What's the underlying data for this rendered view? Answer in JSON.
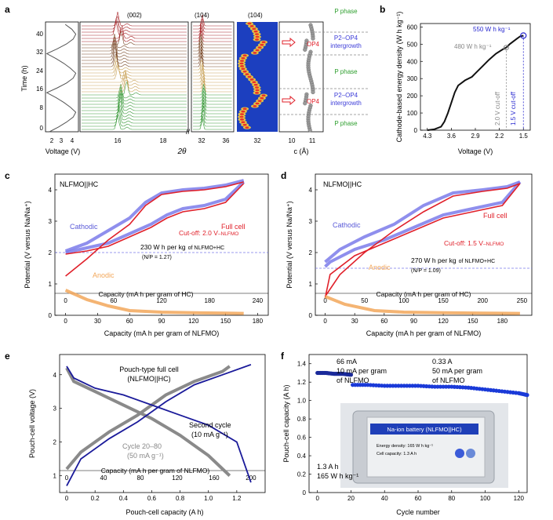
{
  "figure": {
    "colors": {
      "cathodic": "#7b7bea",
      "full_cell": "#e0202a",
      "anodic": "#f2a75a",
      "cutoff_line": "#7b7bea",
      "energy_line": "#111111",
      "marker_blue": "#2a2ad0",
      "phase_green": "#2c9e2c",
      "phase_blue": "#3b3bd8",
      "op4_red": "#e0202a",
      "pouch_blue": "#1a1a9a",
      "pouch_gray": "#8a8a8a",
      "cycle_blue": "#1a3ad8"
    }
  },
  "chart_data": [
    {
      "panel": "a",
      "type": "line",
      "panel_label": "a",
      "ylabel": "Time (h)",
      "yticks": [
        "0",
        "8",
        "16",
        "24",
        "32",
        "40"
      ],
      "ylim": [
        0,
        45
      ],
      "voltage_xlabel": "Voltage (V)",
      "voltage_xticks": [
        "2",
        "3",
        "4"
      ],
      "two_theta_label": "2θ",
      "two_theta_ticks": [
        "16",
        "18",
        "32",
        "36"
      ],
      "c_axis_label": "c (Å)",
      "c_axis_ticks": [
        "10",
        "11"
      ],
      "peak_labels": [
        "(002)",
        "(104)",
        "(104)"
      ],
      "heatmap_tick": "32",
      "op4_label": "OP4",
      "phases": [
        "P phase",
        "P2–OP4",
        "intergrowth",
        "P phase",
        "P2–OP4",
        "intergrowth",
        "P phase"
      ],
      "voltage_profile": {
        "time_h": [
          0,
          2,
          4,
          6,
          8,
          10,
          12,
          14,
          16,
          18,
          20,
          22,
          24,
          26,
          28,
          30,
          32,
          34,
          36,
          38,
          40,
          42,
          44
        ],
        "voltage_v": [
          2.3,
          3.0,
          3.6,
          4.1,
          4.3,
          3.9,
          3.4,
          2.8,
          2.1,
          2.9,
          3.6,
          4.1,
          4.3,
          3.9,
          3.4,
          2.8,
          2.1,
          2.9,
          3.6,
          4.1,
          4.3,
          4.0,
          3.5
        ]
      }
    },
    {
      "panel": "b",
      "type": "line",
      "panel_label": "b",
      "xlabel": "Voltage (V)",
      "ylabel": "Cathode-based energy density (W h kg⁻¹)",
      "xticks": [
        "4.3",
        "3.6",
        "2.9",
        "2.2",
        "1.5"
      ],
      "yticks": [
        "0",
        "100",
        "200",
        "300",
        "400",
        "500",
        "600"
      ],
      "xlim": [
        4.5,
        1.3
      ],
      "ylim": [
        0,
        620
      ],
      "x": [
        4.3,
        4.1,
        3.9,
        3.8,
        3.7,
        3.6,
        3.5,
        3.4,
        3.2,
        3.0,
        2.9,
        2.7,
        2.5,
        2.3,
        2.1,
        2.0,
        1.9,
        1.7,
        1.6,
        1.5
      ],
      "y": [
        0,
        5,
        20,
        50,
        100,
        160,
        220,
        260,
        290,
        310,
        330,
        370,
        410,
        445,
        470,
        480,
        500,
        530,
        545,
        550
      ],
      "annotations": [
        "550 W h kg⁻¹",
        "480 W h kg⁻¹",
        "2.0 V cut-off",
        "1.5 V cut-off"
      ]
    },
    {
      "panel": "c",
      "type": "line",
      "panel_label": "c",
      "title": "NLFMO||HC",
      "xlabel": "Capacity (mA h per gram of NLFMO)",
      "top_xlabel": "Capacity (mA h per gram of HC)",
      "ylabel": "Potential (V versus Na/Na⁺)",
      "xticks": [
        "0",
        "30",
        "60",
        "90",
        "120",
        "150",
        "180"
      ],
      "top_xticks": [
        "0",
        "60",
        "120",
        "180",
        "240"
      ],
      "yticks": [
        "0",
        "1",
        "2",
        "3",
        "4"
      ],
      "xlim": [
        -10,
        190
      ],
      "ylim": [
        0,
        4.5
      ],
      "labels": {
        "cathodic": "Cathodic",
        "full_cell": "Full cell",
        "anodic": "Anodic",
        "cutoff": "Cut-off: 2.0 V",
        "cutoff_sub": "–NLFMO",
        "energy": "230 W h per kg",
        "energy_sub": "of NLFMO+HC",
        "np": "(N/P = 1.27)"
      },
      "cutoff_v": 2.0,
      "series": [
        {
          "name": "Cathodic",
          "charge_x": [
            0,
            20,
            40,
            60,
            75,
            90,
            110,
            130,
            150,
            167
          ],
          "charge_y": [
            2.05,
            2.3,
            2.7,
            3.1,
            3.6,
            3.9,
            4.0,
            4.05,
            4.15,
            4.3
          ],
          "discharge_x": [
            167,
            150,
            130,
            110,
            95,
            80,
            60,
            40,
            20,
            0
          ],
          "discharge_y": [
            4.25,
            3.7,
            3.5,
            3.4,
            3.2,
            2.9,
            2.6,
            2.3,
            2.15,
            2.0
          ]
        },
        {
          "name": "Full cell",
          "charge_x": [
            0,
            20,
            40,
            60,
            75,
            90,
            110,
            130,
            150,
            167
          ],
          "charge_y": [
            1.25,
            1.8,
            2.4,
            2.9,
            3.5,
            3.85,
            3.95,
            4.0,
            4.1,
            4.25
          ],
          "discharge_x": [
            167,
            150,
            130,
            110,
            95,
            80,
            60,
            40,
            20,
            0
          ],
          "discharge_y": [
            4.2,
            3.6,
            3.4,
            3.3,
            3.1,
            2.8,
            2.5,
            2.2,
            2.05,
            1.95
          ]
        },
        {
          "name": "Anodic",
          "x": [
            0,
            20,
            40,
            60,
            90,
            120,
            150,
            167
          ],
          "y": [
            0.8,
            0.5,
            0.3,
            0.15,
            0.1,
            0.08,
            0.07,
            0.06
          ]
        }
      ]
    },
    {
      "panel": "d",
      "type": "line",
      "panel_label": "d",
      "title": "NLFMO||HC",
      "xlabel": "Capacity (mA h per gram of NLFMO)",
      "top_xlabel": "Capacity (mA h per gram of HC)",
      "ylabel": "Potential (V versus Na/Na⁺)",
      "xticks": [
        "0",
        "30",
        "60",
        "90",
        "120",
        "150",
        "180"
      ],
      "top_xticks": [
        "0",
        "50",
        "100",
        "150",
        "200",
        "250"
      ],
      "yticks": [
        "0",
        "1",
        "2",
        "3",
        "4"
      ],
      "xlim": [
        -10,
        210
      ],
      "ylim": [
        0,
        4.5
      ],
      "labels": {
        "cathodic": "Cathodic",
        "full_cell": "Full cell",
        "anodic": "Anodic",
        "cutoff": "Cut-off: 1.5 V",
        "cutoff_sub": "–NLFMO",
        "energy": "270 W h per kg",
        "energy_sub": "of NLFMO+HC",
        "np": "(N/P = 1.09)"
      },
      "cutoff_v": 1.5,
      "series": [
        {
          "name": "Cathodic",
          "charge_x": [
            0,
            15,
            40,
            70,
            100,
            130,
            160,
            185,
            198
          ],
          "charge_y": [
            1.7,
            2.1,
            2.5,
            2.9,
            3.5,
            3.9,
            4.0,
            4.1,
            4.25
          ],
          "discharge_x": [
            198,
            180,
            150,
            120,
            90,
            60,
            30,
            5,
            0
          ],
          "discharge_y": [
            4.25,
            3.6,
            3.4,
            3.2,
            2.8,
            2.4,
            2.1,
            1.7,
            1.55
          ]
        },
        {
          "name": "Full cell",
          "charge_x": [
            0,
            15,
            40,
            70,
            100,
            130,
            160,
            185,
            198
          ],
          "charge_y": [
            0.6,
            1.3,
            2.0,
            2.7,
            3.3,
            3.8,
            3.95,
            4.05,
            4.2
          ],
          "discharge_x": [
            198,
            180,
            150,
            120,
            90,
            60,
            30,
            5,
            0
          ],
          "discharge_y": [
            4.2,
            3.5,
            3.3,
            3.1,
            2.7,
            2.3,
            1.9,
            1.3,
            0.55
          ]
        },
        {
          "name": "Anodic",
          "x": [
            0,
            20,
            50,
            80,
            120,
            160,
            198
          ],
          "y": [
            0.6,
            0.35,
            0.15,
            0.1,
            0.08,
            0.07,
            0.06
          ]
        }
      ]
    },
    {
      "panel": "e",
      "type": "line",
      "panel_label": "e",
      "xlabel": "Pouch-cell capacity (A h)",
      "top_xlabel": "Capacity (mA h per gram of NLFMO)",
      "ylabel": "Pouch-cell voltage (V)",
      "xticks": [
        "0",
        "0.2",
        "0.4",
        "0.6",
        "0.8",
        "1.0",
        "1.2"
      ],
      "top_xticks": [
        "0",
        "40",
        "80",
        "120",
        "160",
        "200"
      ],
      "yticks": [
        "1",
        "2",
        "3",
        "4"
      ],
      "xlim": [
        -0.05,
        1.4
      ],
      "ylim": [
        0.5,
        4.6
      ],
      "labels": {
        "pouch": "Pouch-type full cell",
        "pouch_sub": "(NLFMO||HC)",
        "second": "Second cycle",
        "second_sub": "(10 mA g⁻¹)",
        "cycle": "Cycle 20–80",
        "cycle_sub": "(50 mA g⁻¹)"
      },
      "series": [
        {
          "name": "Second cycle",
          "charge_x": [
            0,
            0.1,
            0.3,
            0.5,
            0.7,
            0.9,
            1.1,
            1.3
          ],
          "charge_y": [
            0.7,
            1.5,
            2.1,
            2.6,
            3.2,
            3.7,
            4.0,
            4.3
          ],
          "discharge_x": [
            0,
            0.05,
            0.2,
            0.4,
            0.6,
            0.8,
            1.0,
            1.2,
            1.3
          ],
          "discharge_y": [
            4.25,
            3.9,
            3.6,
            3.4,
            3.1,
            2.8,
            2.5,
            2.0,
            0.8
          ]
        },
        {
          "name": "Cycle 20–80",
          "charge_x": [
            0,
            0.1,
            0.3,
            0.5,
            0.7,
            0.9,
            1.1,
            1.15
          ],
          "charge_y": [
            1.2,
            1.7,
            2.3,
            2.8,
            3.4,
            3.8,
            4.1,
            4.25
          ],
          "discharge_x": [
            0,
            0.05,
            0.2,
            0.4,
            0.6,
            0.8,
            1.0,
            1.15
          ],
          "discharge_y": [
            4.2,
            3.8,
            3.5,
            3.1,
            2.7,
            2.2,
            1.6,
            1.0
          ]
        }
      ]
    },
    {
      "panel": "f",
      "type": "scatter",
      "panel_label": "f",
      "xlabel": "Cycle number",
      "ylabel": "Pouch-cell capacity (A h)",
      "xticks": [
        "0",
        "20",
        "40",
        "60",
        "80",
        "100",
        "120"
      ],
      "yticks": [
        "0",
        "0.2",
        "0.4",
        "0.6",
        "0.8",
        "1.0",
        "1.2",
        "1.4"
      ],
      "xlim": [
        -5,
        125
      ],
      "ylim": [
        0,
        1.5
      ],
      "labels": {
        "c1": "66 mA",
        "c1b": "10 mA per gram",
        "c1c": "of NLFMO",
        "c2": "0.33 A",
        "c2b": "50 mA per gram",
        "c2c": "of NLFMO",
        "cap": "1.3 A h",
        "energy": "165 W h kg⁻¹"
      },
      "photo_text": {
        "title": "Na-ion battery (NLFMO||HC)",
        "line1": "Energy density: 165 W h kg⁻¹",
        "line2": "Cell capacity: 1.3 A h"
      },
      "series": [
        {
          "name": "66 mA",
          "x": [
            0,
            5,
            10,
            15,
            20
          ],
          "y": [
            1.3,
            1.3,
            1.29,
            1.29,
            1.28
          ]
        },
        {
          "name": "0.33 A",
          "x": [
            21,
            30,
            40,
            50,
            60,
            70,
            80,
            90,
            100,
            110,
            120,
            125
          ],
          "y": [
            1.17,
            1.17,
            1.16,
            1.16,
            1.16,
            1.15,
            1.15,
            1.14,
            1.12,
            1.1,
            1.08,
            1.06
          ]
        }
      ]
    }
  ]
}
